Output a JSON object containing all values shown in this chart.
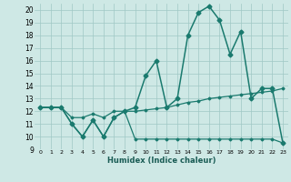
{
  "xlabel": "Humidex (Indice chaleur)",
  "background_color": "#cee8e5",
  "grid_color": "#a0c8c4",
  "line_color": "#1a7a6e",
  "xlim": [
    -0.5,
    23.5
  ],
  "ylim": [
    9,
    20.5
  ],
  "xticks": [
    0,
    1,
    2,
    3,
    4,
    5,
    6,
    7,
    8,
    9,
    10,
    11,
    12,
    13,
    14,
    15,
    16,
    17,
    18,
    19,
    20,
    21,
    22,
    23
  ],
  "yticks": [
    9,
    10,
    11,
    12,
    13,
    14,
    15,
    16,
    17,
    18,
    19,
    20
  ],
  "series": [
    {
      "x": [
        0,
        1,
        2,
        3,
        4,
        5,
        6,
        7,
        8,
        9,
        10,
        11,
        12,
        13,
        14,
        15,
        16,
        17,
        18,
        19,
        20,
        21,
        22,
        23
      ],
      "y": [
        12.3,
        12.3,
        12.3,
        11.0,
        10.0,
        11.3,
        10.0,
        11.5,
        12.0,
        12.3,
        14.8,
        16.0,
        12.3,
        13.0,
        18.0,
        19.8,
        20.3,
        19.2,
        16.5,
        18.3,
        13.0,
        13.8,
        13.8,
        9.5
      ],
      "marker": "D",
      "markersize": 2.5,
      "linewidth": 1.1
    },
    {
      "x": [
        0,
        1,
        2,
        3,
        4,
        5,
        6,
        7,
        8,
        9,
        10,
        11,
        12,
        13,
        14,
        15,
        16,
        17,
        18,
        19,
        20,
        21,
        22,
        23
      ],
      "y": [
        12.3,
        12.3,
        12.3,
        11.5,
        11.5,
        11.8,
        11.5,
        12.0,
        12.0,
        12.0,
        12.1,
        12.2,
        12.3,
        12.5,
        12.7,
        12.8,
        13.0,
        13.1,
        13.2,
        13.3,
        13.4,
        13.5,
        13.6,
        13.8
      ],
      "marker": "D",
      "markersize": 1.5,
      "linewidth": 0.9
    },
    {
      "x": [
        0,
        1,
        2,
        3,
        4,
        5,
        6,
        7,
        8,
        9,
        10,
        11,
        12,
        13,
        14,
        15,
        16,
        17,
        18,
        19,
        20,
        21,
        22,
        23
      ],
      "y": [
        12.3,
        12.3,
        12.3,
        11.0,
        10.0,
        11.3,
        10.0,
        11.5,
        12.0,
        9.8,
        9.8,
        9.8,
        9.8,
        9.8,
        9.8,
        9.8,
        9.8,
        9.8,
        9.8,
        9.8,
        9.8,
        9.8,
        9.8,
        9.5
      ],
      "marker": "D",
      "markersize": 1.5,
      "linewidth": 0.9
    }
  ]
}
